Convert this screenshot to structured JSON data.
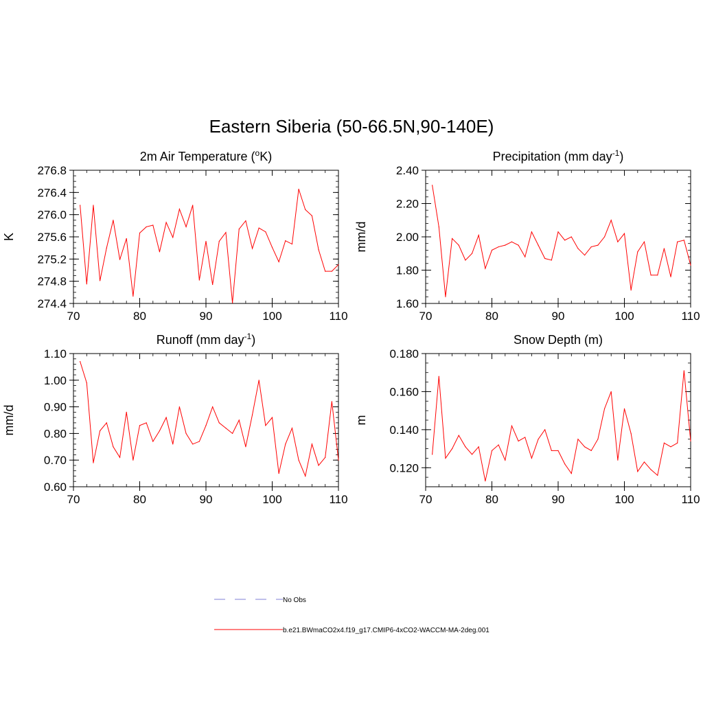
{
  "page_title": "Eastern Siberia (50-66.5N,90-140E)",
  "colors": {
    "model": "#ff0000",
    "obs": "#9999dd",
    "axis": "#000000"
  },
  "legend": {
    "obs_label": "No Obs",
    "model_label": "b.e21.BWmaCO2x4.f19_g17.CMIP6-4xCO2-WACCM-MA-2deg.001"
  },
  "chart_data": [
    {
      "type": "line",
      "title": "2m Air Temperature (oK)",
      "title_main": "2m Air Temperature (",
      "title_sup": "o",
      "title_tail": "K)",
      "xlabel": "",
      "ylabel": "K",
      "xlim": [
        70,
        110
      ],
      "ylim": [
        274.4,
        276.8
      ],
      "xticks": [
        70,
        80,
        90,
        100,
        110
      ],
      "yticks": [
        "274.4",
        "274.8",
        "275.2",
        "275.6",
        "276.0",
        "276.4",
        "276.8"
      ],
      "ytick_values": [
        274.4,
        274.8,
        275.2,
        275.6,
        276.0,
        276.4,
        276.8
      ],
      "yminor": 0.1,
      "x": [
        71,
        72,
        73,
        74,
        75,
        76,
        77,
        78,
        79,
        80,
        81,
        82,
        83,
        84,
        85,
        86,
        87,
        88,
        89,
        90,
        91,
        92,
        93,
        94,
        95,
        96,
        97,
        98,
        99,
        100,
        101,
        102,
        103,
        104,
        105,
        106,
        107,
        108,
        109,
        110
      ],
      "series": [
        {
          "name": "b.e21.BWmaCO2x4.f19_g17.CMIP6-4xCO2-WACCM-MA-2deg.001",
          "values": [
            276.17,
            274.75,
            276.17,
            274.81,
            275.4,
            275.9,
            275.19,
            275.57,
            274.53,
            275.67,
            275.78,
            275.81,
            275.33,
            275.86,
            275.59,
            276.1,
            275.78,
            276.17,
            274.82,
            275.52,
            274.74,
            275.52,
            275.68,
            274.41,
            275.74,
            275.89,
            275.39,
            275.76,
            275.69,
            275.41,
            275.15,
            275.53,
            275.47,
            276.46,
            276.09,
            275.98,
            275.37,
            274.98,
            274.98,
            275.1
          ]
        }
      ]
    },
    {
      "type": "line",
      "title": "Precipitation (mm day-1)",
      "title_main": "Precipitation (mm day",
      "title_sup": "-1",
      "title_tail": ")",
      "xlabel": "",
      "ylabel": "mm/d",
      "xlim": [
        70,
        110
      ],
      "ylim": [
        1.6,
        2.4
      ],
      "xticks": [
        70,
        80,
        90,
        100,
        110
      ],
      "yticks": [
        "1.60",
        "1.80",
        "2.00",
        "2.20",
        "2.40"
      ],
      "ytick_values": [
        1.6,
        1.8,
        2.0,
        2.2,
        2.4
      ],
      "yminor": 0.04,
      "x": [
        71,
        72,
        73,
        74,
        75,
        76,
        77,
        78,
        79,
        80,
        81,
        82,
        83,
        84,
        85,
        86,
        87,
        88,
        89,
        90,
        91,
        92,
        93,
        94,
        95,
        96,
        97,
        98,
        99,
        100,
        101,
        102,
        103,
        104,
        105,
        106,
        107,
        108,
        109,
        110
      ],
      "series": [
        {
          "name": "b.e21.BWmaCO2x4.f19_g17.CMIP6-4xCO2-WACCM-MA-2deg.001",
          "values": [
            2.31,
            2.06,
            1.64,
            1.99,
            1.95,
            1.86,
            1.9,
            2.01,
            1.81,
            1.92,
            1.94,
            1.95,
            1.97,
            1.95,
            1.88,
            2.03,
            1.95,
            1.87,
            1.86,
            2.03,
            1.98,
            2.0,
            1.93,
            1.89,
            1.94,
            1.95,
            2.0,
            2.1,
            1.97,
            2.02,
            1.68,
            1.91,
            1.97,
            1.77,
            1.77,
            1.93,
            1.76,
            1.97,
            1.98,
            1.83
          ]
        }
      ]
    },
    {
      "type": "line",
      "title": "Runoff (mm day-1)",
      "title_main": "Runoff (mm day",
      "title_sup": "-1",
      "title_tail": ")",
      "xlabel": "",
      "ylabel": "mm/d",
      "xlim": [
        70,
        110
      ],
      "ylim": [
        0.6,
        1.1
      ],
      "xticks": [
        70,
        80,
        90,
        100,
        110
      ],
      "yticks": [
        "0.60",
        "0.70",
        "0.80",
        "0.90",
        "1.00",
        "1.10"
      ],
      "ytick_values": [
        0.6,
        0.7,
        0.8,
        0.9,
        1.0,
        1.1
      ],
      "yminor": 0.02,
      "x": [
        71,
        72,
        73,
        74,
        75,
        76,
        77,
        78,
        79,
        80,
        81,
        82,
        83,
        84,
        85,
        86,
        87,
        88,
        89,
        90,
        91,
        92,
        93,
        94,
        95,
        96,
        97,
        98,
        99,
        100,
        101,
        102,
        103,
        104,
        105,
        106,
        107,
        108,
        109,
        110
      ],
      "series": [
        {
          "name": "b.e21.BWmaCO2x4.f19_g17.CMIP6-4xCO2-WACCM-MA-2deg.001",
          "values": [
            1.07,
            0.99,
            0.69,
            0.81,
            0.84,
            0.75,
            0.71,
            0.88,
            0.7,
            0.83,
            0.84,
            0.77,
            0.81,
            0.86,
            0.76,
            0.9,
            0.8,
            0.76,
            0.77,
            0.83,
            0.9,
            0.84,
            0.82,
            0.8,
            0.85,
            0.75,
            0.87,
            1.0,
            0.83,
            0.86,
            0.65,
            0.76,
            0.82,
            0.7,
            0.64,
            0.76,
            0.68,
            0.71,
            0.92,
            0.7
          ]
        }
      ]
    },
    {
      "type": "line",
      "title": "Snow Depth (m)",
      "title_main": "Snow Depth (m)",
      "title_sup": "",
      "title_tail": "",
      "xlabel": "",
      "ylabel": "m",
      "xlim": [
        70,
        110
      ],
      "ylim": [
        0.11,
        0.18
      ],
      "xticks": [
        70,
        80,
        90,
        100,
        110
      ],
      "yticks": [
        "0.120",
        "0.140",
        "0.160",
        "0.180"
      ],
      "ytick_values": [
        0.12,
        0.14,
        0.16,
        0.18
      ],
      "yminor": 0.005,
      "x": [
        71,
        72,
        73,
        74,
        75,
        76,
        77,
        78,
        79,
        80,
        81,
        82,
        83,
        84,
        85,
        86,
        87,
        88,
        89,
        90,
        91,
        92,
        93,
        94,
        95,
        96,
        97,
        98,
        99,
        100,
        101,
        102,
        103,
        104,
        105,
        106,
        107,
        108,
        109,
        110
      ],
      "series": [
        {
          "name": "b.e21.BWmaCO2x4.f19_g17.CMIP6-4xCO2-WACCM-MA-2deg.001",
          "values": [
            0.127,
            0.168,
            0.125,
            0.13,
            0.137,
            0.131,
            0.127,
            0.131,
            0.113,
            0.129,
            0.132,
            0.124,
            0.142,
            0.134,
            0.136,
            0.125,
            0.135,
            0.14,
            0.129,
            0.129,
            0.122,
            0.117,
            0.135,
            0.131,
            0.129,
            0.135,
            0.151,
            0.16,
            0.124,
            0.151,
            0.138,
            0.118,
            0.123,
            0.119,
            0.116,
            0.133,
            0.131,
            0.133,
            0.171,
            0.134
          ]
        }
      ]
    }
  ]
}
